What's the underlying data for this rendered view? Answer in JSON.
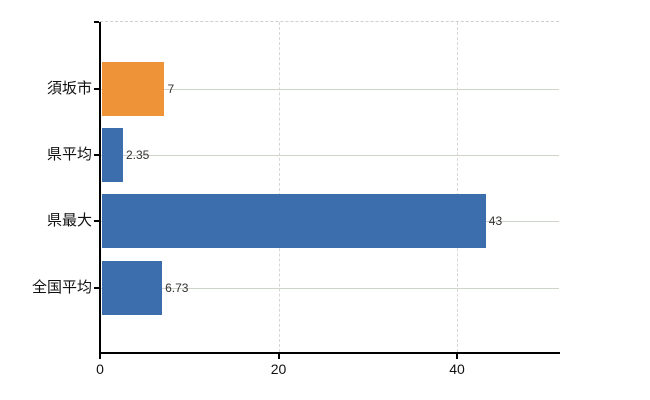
{
  "chart_data": {
    "type": "bar",
    "orientation": "horizontal",
    "title": "",
    "xlabel": "",
    "ylabel": "",
    "categories": [
      "須坂市",
      "県平均",
      "県最大",
      "全国平均"
    ],
    "values": [
      7,
      2.35,
      43,
      6.73
    ],
    "value_labels": [
      "7",
      "2.35",
      "43",
      "6.73"
    ],
    "bar_colors": [
      "#ee9338",
      "#3c6eae",
      "#3c6eae",
      "#3c6eae"
    ],
    "highlight_category": "須坂市",
    "x_ticks": [
      0,
      20,
      40
    ],
    "x_tick_labels": [
      "0",
      "20",
      "40"
    ],
    "xlim": [
      0,
      51.4
    ],
    "grid": true,
    "legend": "none",
    "colors": {
      "highlight_bar": "#ee9338",
      "default_bar": "#3c6eae",
      "horizontal_gridline": "#cdd4c9",
      "vertical_gridline": "#d6d6d6",
      "plot_top_border": "#cfcfcf",
      "axis": "#000000",
      "value_label_text": "#333333",
      "category_label_text": "#111111",
      "background": "#ffffff"
    }
  }
}
